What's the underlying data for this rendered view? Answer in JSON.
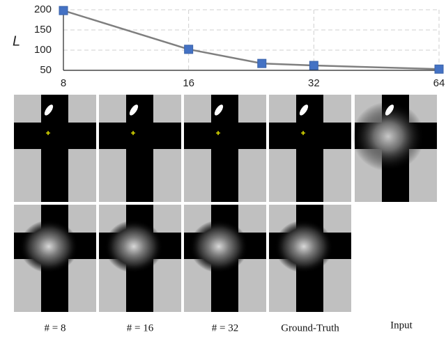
{
  "chart_data": {
    "type": "line",
    "y_label": "L",
    "x": [
      8,
      16,
      24,
      32,
      64
    ],
    "series": [
      {
        "color": "#4472c4",
        "line_color": "#7f7f7f",
        "values": [
          198,
          102,
          67,
          62,
          53
        ]
      }
    ],
    "xlim": [
      8,
      64
    ],
    "xticks": [
      8,
      16,
      32,
      64
    ],
    "xlog": true,
    "ylim": [
      50,
      200
    ],
    "yticks": [
      50,
      100,
      150,
      200
    ],
    "grid": true
  },
  "image_labels": [
    "# = 8",
    "# = 16",
    "# = 32",
    "Ground-Truth",
    "Input"
  ]
}
